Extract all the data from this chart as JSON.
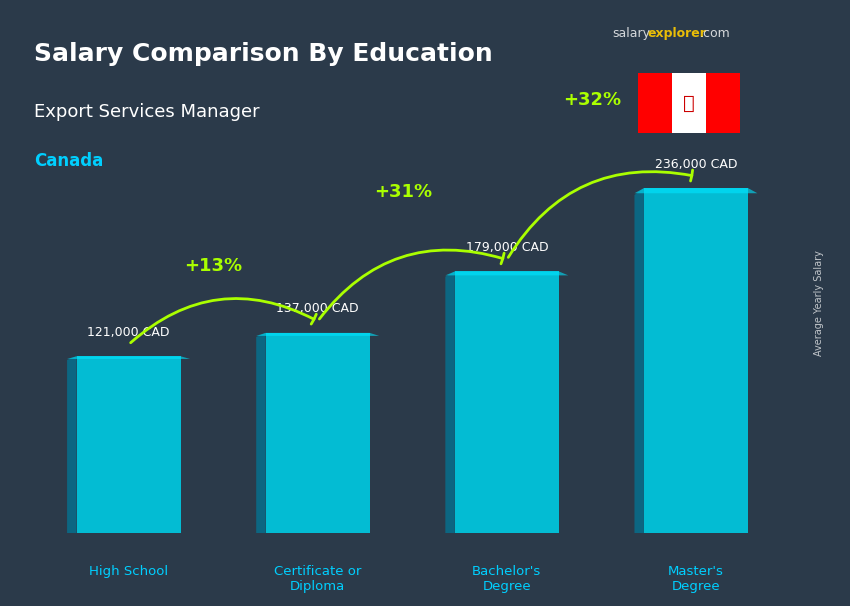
{
  "title_bold": "Salary Comparison By Education",
  "subtitle": "Export Services Manager",
  "country": "Canada",
  "categories": [
    "High School",
    "Certificate or\nDiploma",
    "Bachelor's\nDegree",
    "Master's\nDegree"
  ],
  "values": [
    121000,
    137000,
    179000,
    236000
  ],
  "labels": [
    "121,000 CAD",
    "137,000 CAD",
    "179,000 CAD",
    "236,000 CAD"
  ],
  "pct_changes": [
    "+13%",
    "+31%",
    "+32%"
  ],
  "bar_color_face": "#00c8e0",
  "bar_color_edge": "#00a0b8",
  "background_color": "#1a2a3a",
  "title_color": "#ffffff",
  "subtitle_color": "#ffffff",
  "country_color": "#00cfff",
  "label_color": "#ffffff",
  "pct_color": "#aaff00",
  "arrow_color": "#aaff00",
  "ylabel_text": "Average Yearly Salary",
  "salary_explorer_text": "salaryexplorer.com",
  "ylim": [
    0,
    290000
  ]
}
